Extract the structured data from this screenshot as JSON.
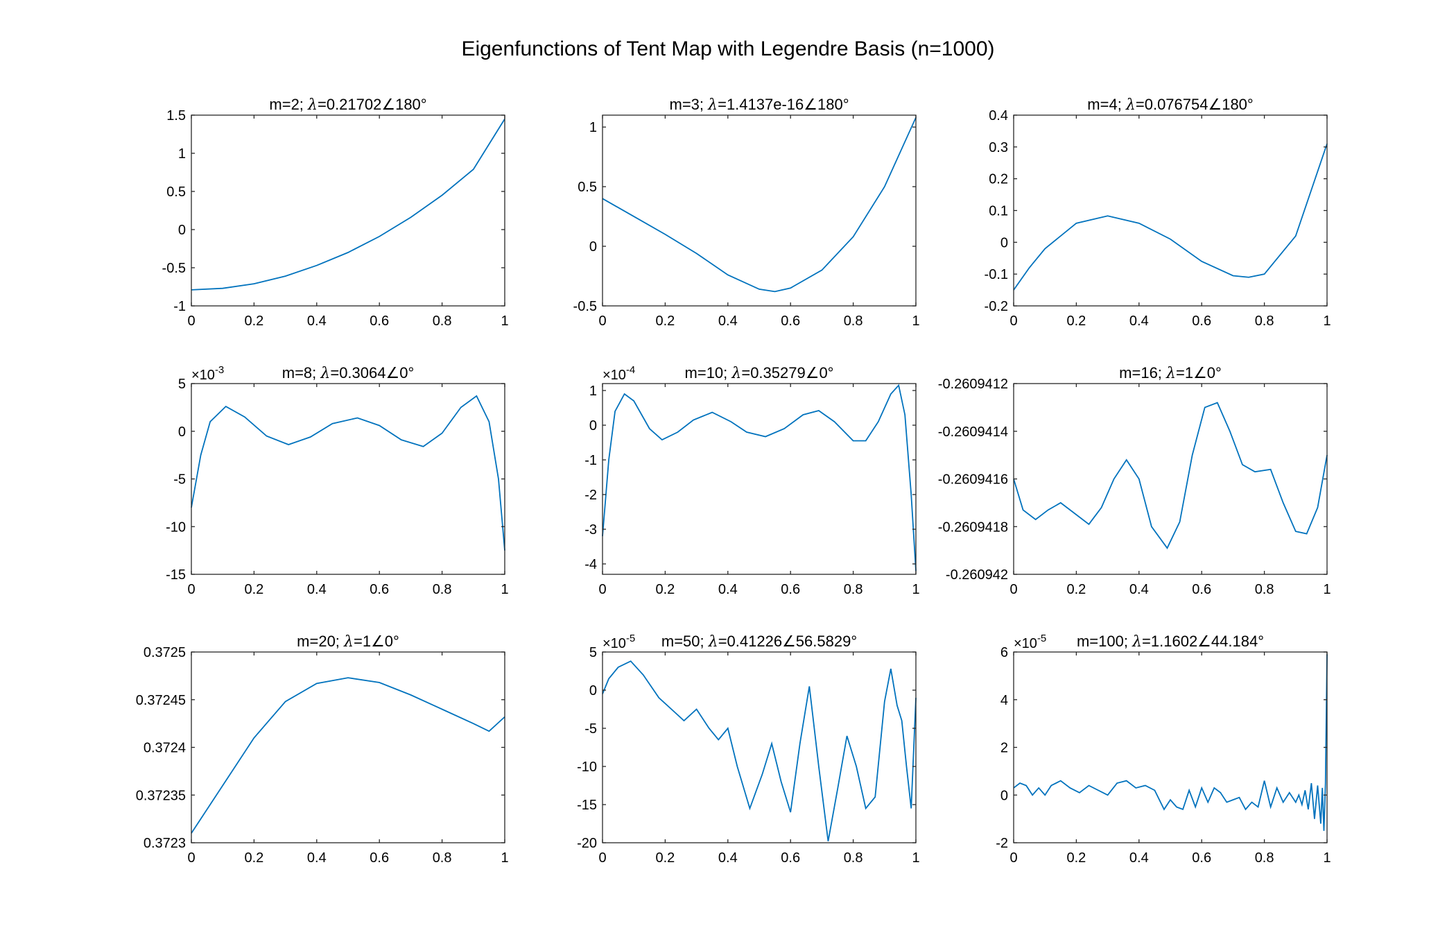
{
  "figure_title": "Eigenfunctions of Tent Map with Legendre Basis (n=1000)",
  "line_color": "#0072BD",
  "chart_data": [
    {
      "type": "line",
      "title_prefix": "m=2; ",
      "title_value": "=0.21702∠180°",
      "xlim": [
        0,
        1
      ],
      "ylim": [
        -1,
        1.5
      ],
      "x_ticks": [
        0,
        0.2,
        0.4,
        0.6,
        0.8,
        1
      ],
      "x_tick_labels": [
        "0",
        "0.2",
        "0.4",
        "0.6",
        "0.8",
        "1"
      ],
      "y_ticks": [
        -1,
        -0.5,
        0,
        0.5,
        1,
        1.5
      ],
      "y_tick_labels": [
        "-1",
        "-0.5",
        "0",
        "0.5",
        "1",
        "1.5"
      ],
      "exponent": null,
      "x": [
        0,
        0.1,
        0.2,
        0.3,
        0.4,
        0.5,
        0.6,
        0.7,
        0.8,
        0.9,
        1.0
      ],
      "y": [
        -0.79,
        -0.77,
        -0.71,
        -0.61,
        -0.47,
        -0.3,
        -0.09,
        0.16,
        0.45,
        0.79,
        1.45
      ]
    },
    {
      "type": "line",
      "title_prefix": "m=3; ",
      "title_value": "=1.4137e-16∠180°",
      "xlim": [
        0,
        1
      ],
      "ylim": [
        -0.5,
        1.1
      ],
      "x_ticks": [
        0,
        0.2,
        0.4,
        0.6,
        0.8,
        1
      ],
      "x_tick_labels": [
        "0",
        "0.2",
        "0.4",
        "0.6",
        "0.8",
        "1"
      ],
      "y_ticks": [
        -0.5,
        0,
        0.5,
        1
      ],
      "y_tick_labels": [
        "-0.5",
        "0",
        "0.5",
        "1"
      ],
      "exponent": null,
      "x": [
        0,
        0.1,
        0.2,
        0.3,
        0.4,
        0.5,
        0.55,
        0.6,
        0.7,
        0.8,
        0.9,
        1.0
      ],
      "y": [
        0.4,
        0.25,
        0.1,
        -0.06,
        -0.24,
        -0.36,
        -0.38,
        -0.35,
        -0.2,
        0.08,
        0.5,
        1.08
      ]
    },
    {
      "type": "line",
      "title_prefix": "m=4; ",
      "title_value": "=0.076754∠180°",
      "xlim": [
        0,
        1
      ],
      "ylim": [
        -0.2,
        0.4
      ],
      "x_ticks": [
        0,
        0.2,
        0.4,
        0.6,
        0.8,
        1
      ],
      "x_tick_labels": [
        "0",
        "0.2",
        "0.4",
        "0.6",
        "0.8",
        "1"
      ],
      "y_ticks": [
        -0.2,
        -0.1,
        0,
        0.1,
        0.2,
        0.3,
        0.4
      ],
      "y_tick_labels": [
        "-0.2",
        "-0.1",
        "0",
        "0.1",
        "0.2",
        "0.3",
        "0.4"
      ],
      "exponent": null,
      "x": [
        0,
        0.05,
        0.1,
        0.2,
        0.3,
        0.4,
        0.5,
        0.6,
        0.7,
        0.75,
        0.8,
        0.9,
        1.0
      ],
      "y": [
        -0.15,
        -0.08,
        -0.02,
        0.06,
        0.083,
        0.06,
        0.01,
        -0.06,
        -0.105,
        -0.11,
        -0.1,
        0.02,
        0.31
      ]
    },
    {
      "type": "line",
      "title_prefix": "m=8; ",
      "title_value": "=0.3064∠0°",
      "xlim": [
        0,
        1
      ],
      "ylim": [
        -15,
        5
      ],
      "x_ticks": [
        0,
        0.2,
        0.4,
        0.6,
        0.8,
        1
      ],
      "x_tick_labels": [
        "0",
        "0.2",
        "0.4",
        "0.6",
        "0.8",
        "1"
      ],
      "y_ticks": [
        -15,
        -10,
        -5,
        0,
        5
      ],
      "y_tick_labels": [
        "-15",
        "-10",
        "-5",
        "0",
        "5"
      ],
      "exponent": "-3",
      "x": [
        0,
        0.03,
        0.06,
        0.11,
        0.17,
        0.24,
        0.31,
        0.38,
        0.45,
        0.53,
        0.6,
        0.67,
        0.74,
        0.8,
        0.86,
        0.91,
        0.95,
        0.98,
        1.0
      ],
      "y": [
        -8,
        -2.5,
        1.0,
        2.6,
        1.5,
        -0.5,
        -1.4,
        -0.6,
        0.8,
        1.4,
        0.6,
        -0.9,
        -1.6,
        -0.2,
        2.5,
        3.7,
        1.0,
        -5.0,
        -12.5
      ]
    },
    {
      "type": "line",
      "title_prefix": "m=10; ",
      "title_value": "=0.35279∠0°",
      "xlim": [
        0,
        1
      ],
      "ylim": [
        -4.3,
        1.2
      ],
      "x_ticks": [
        0,
        0.2,
        0.4,
        0.6,
        0.8,
        1
      ],
      "x_tick_labels": [
        "0",
        "0.2",
        "0.4",
        "0.6",
        "0.8",
        "1"
      ],
      "y_ticks": [
        -4,
        -3,
        -2,
        -1,
        0,
        1
      ],
      "y_tick_labels": [
        "-4",
        "-3",
        "-2",
        "-1",
        "0",
        "1"
      ],
      "exponent": "-4",
      "x": [
        0,
        0.02,
        0.04,
        0.07,
        0.1,
        0.15,
        0.19,
        0.24,
        0.29,
        0.35,
        0.41,
        0.46,
        0.52,
        0.58,
        0.64,
        0.69,
        0.74,
        0.8,
        0.84,
        0.88,
        0.92,
        0.945,
        0.965,
        0.985,
        1.0
      ],
      "y": [
        -3.2,
        -1.0,
        0.4,
        0.9,
        0.7,
        -0.1,
        -0.42,
        -0.2,
        0.15,
        0.37,
        0.1,
        -0.2,
        -0.33,
        -0.1,
        0.3,
        0.42,
        0.1,
        -0.45,
        -0.45,
        0.1,
        0.9,
        1.15,
        0.3,
        -2.0,
        -4.2
      ]
    },
    {
      "type": "line",
      "title_prefix": "m=16; ",
      "title_value": "=1∠0°",
      "xlim": [
        0,
        1
      ],
      "ylim": [
        -0.260942,
        -0.2609412
      ],
      "x_ticks": [
        0,
        0.2,
        0.4,
        0.6,
        0.8,
        1
      ],
      "x_tick_labels": [
        "0",
        "0.2",
        "0.4",
        "0.6",
        "0.8",
        "1"
      ],
      "y_ticks": [
        -0.260942,
        -0.2609418,
        -0.2609416,
        -0.2609414,
        -0.2609412
      ],
      "y_tick_labels": [
        "-0.260942",
        "-0.2609418",
        "-0.2609416",
        "-0.2609414",
        "-0.2609412"
      ],
      "exponent": null,
      "x": [
        0,
        0.03,
        0.07,
        0.11,
        0.15,
        0.19,
        0.24,
        0.28,
        0.32,
        0.36,
        0.4,
        0.44,
        0.49,
        0.53,
        0.57,
        0.61,
        0.65,
        0.69,
        0.73,
        0.77,
        0.82,
        0.86,
        0.9,
        0.935,
        0.97,
        1.0
      ],
      "y": [
        -0.2609416,
        -0.26094173,
        -0.26094177,
        -0.26094173,
        -0.2609417,
        -0.26094174,
        -0.26094179,
        -0.26094172,
        -0.2609416,
        -0.26094152,
        -0.2609416,
        -0.2609418,
        -0.26094189,
        -0.26094178,
        -0.2609415,
        -0.2609413,
        -0.26094128,
        -0.2609414,
        -0.26094154,
        -0.26094157,
        -0.26094156,
        -0.2609417,
        -0.26094182,
        -0.26094183,
        -0.26094172,
        -0.2609415
      ]
    },
    {
      "type": "line",
      "title_prefix": "m=20; ",
      "title_value": "=1∠0°",
      "xlim": [
        0,
        1
      ],
      "ylim": [
        0.3723,
        0.3725
      ],
      "x_ticks": [
        0,
        0.2,
        0.4,
        0.6,
        0.8,
        1
      ],
      "x_tick_labels": [
        "0",
        "0.2",
        "0.4",
        "0.6",
        "0.8",
        "1"
      ],
      "y_ticks": [
        0.3723,
        0.37235,
        0.3724,
        0.37245,
        0.3725
      ],
      "y_tick_labels": [
        "0.3723",
        "0.37235",
        "0.3724",
        "0.37245",
        "0.3725"
      ],
      "exponent": null,
      "x": [
        0,
        0.1,
        0.2,
        0.3,
        0.4,
        0.5,
        0.6,
        0.7,
        0.8,
        0.9,
        0.95,
        1.0
      ],
      "y": [
        0.37231,
        0.37236,
        0.37241,
        0.372448,
        0.372467,
        0.372473,
        0.372468,
        0.372455,
        0.37244,
        0.372425,
        0.372417,
        0.372432
      ]
    },
    {
      "type": "line",
      "title_prefix": "m=50; ",
      "title_value": "=0.41226∠56.5829°",
      "xlim": [
        0,
        1
      ],
      "ylim": [
        -20,
        5
      ],
      "x_ticks": [
        0,
        0.2,
        0.4,
        0.6,
        0.8,
        1
      ],
      "x_tick_labels": [
        "0",
        "0.2",
        "0.4",
        "0.6",
        "0.8",
        "1"
      ],
      "y_ticks": [
        -20,
        -15,
        -10,
        -5,
        0,
        5
      ],
      "y_tick_labels": [
        "-20",
        "-15",
        "-10",
        "-5",
        "0",
        "5"
      ],
      "exponent": "-5",
      "x": [
        0,
        0.02,
        0.05,
        0.09,
        0.13,
        0.18,
        0.22,
        0.26,
        0.3,
        0.34,
        0.37,
        0.4,
        0.43,
        0.47,
        0.51,
        0.54,
        0.57,
        0.6,
        0.63,
        0.66,
        0.69,
        0.72,
        0.75,
        0.78,
        0.81,
        0.84,
        0.87,
        0.9,
        0.92,
        0.94,
        0.955,
        0.97,
        0.985,
        1.0
      ],
      "y": [
        -0.5,
        1.5,
        3.0,
        3.8,
        2.0,
        -1.0,
        -2.5,
        -4.0,
        -2.5,
        -5.0,
        -6.5,
        -5.0,
        -10.0,
        -15.5,
        -11.0,
        -7.0,
        -12.0,
        -16.0,
        -7.0,
        0.5,
        -10.0,
        -19.8,
        -13.0,
        -6.0,
        -10.0,
        -15.5,
        -14.0,
        -1.5,
        2.8,
        -2.0,
        -4.0,
        -10.0,
        -15.5,
        -1.0
      ]
    },
    {
      "type": "line",
      "title_prefix": "m=100; ",
      "title_value": "=1.1602∠44.184°",
      "xlim": [
        0,
        1
      ],
      "ylim": [
        -2,
        6
      ],
      "x_ticks": [
        0,
        0.2,
        0.4,
        0.6,
        0.8,
        1
      ],
      "x_tick_labels": [
        "0",
        "0.2",
        "0.4",
        "0.6",
        "0.8",
        "1"
      ],
      "y_ticks": [
        -2,
        0,
        2,
        4,
        6
      ],
      "y_tick_labels": [
        "-2",
        "0",
        "2",
        "4",
        "6"
      ],
      "exponent": "-5",
      "x": [
        0,
        0.02,
        0.04,
        0.06,
        0.08,
        0.1,
        0.12,
        0.15,
        0.18,
        0.21,
        0.24,
        0.27,
        0.3,
        0.33,
        0.36,
        0.39,
        0.42,
        0.45,
        0.48,
        0.5,
        0.52,
        0.54,
        0.56,
        0.58,
        0.6,
        0.62,
        0.64,
        0.66,
        0.68,
        0.7,
        0.72,
        0.74,
        0.76,
        0.78,
        0.8,
        0.82,
        0.84,
        0.86,
        0.88,
        0.9,
        0.91,
        0.92,
        0.93,
        0.94,
        0.95,
        0.96,
        0.97,
        0.98,
        0.985,
        0.99,
        0.995,
        1.0
      ],
      "y": [
        0.3,
        0.5,
        0.4,
        0.0,
        0.3,
        0.0,
        0.4,
        0.6,
        0.3,
        0.1,
        0.4,
        0.2,
        0.0,
        0.5,
        0.6,
        0.3,
        0.4,
        0.2,
        -0.6,
        -0.2,
        -0.5,
        -0.6,
        0.2,
        -0.5,
        0.3,
        -0.3,
        0.3,
        0.1,
        -0.3,
        -0.2,
        -0.1,
        -0.6,
        -0.3,
        -0.5,
        0.6,
        -0.5,
        0.3,
        -0.3,
        0.1,
        -0.3,
        0.0,
        -0.4,
        0.2,
        -0.6,
        0.5,
        -1.0,
        0.4,
        -1.2,
        0.3,
        -1.5,
        0.5,
        5.9
      ]
    }
  ]
}
